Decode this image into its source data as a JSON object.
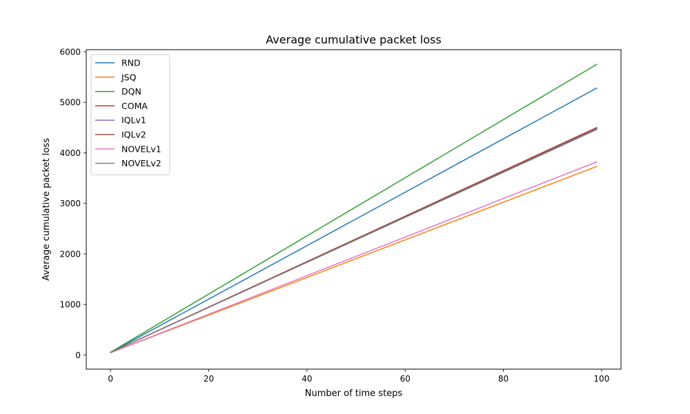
{
  "chart_data": {
    "type": "line",
    "title": "Average cumulative packet loss",
    "xlabel": "Number of time steps",
    "ylabel": "Average cumulative packet loss",
    "xlim": [
      -4.95,
      103.95
    ],
    "ylim": [
      -280,
      6040
    ],
    "xticks": [
      0,
      20,
      40,
      60,
      80,
      100
    ],
    "yticks": [
      0,
      1000,
      2000,
      3000,
      4000,
      5000,
      6000
    ],
    "grid": false,
    "legend_position": "upper left",
    "series": [
      {
        "name": "RND",
        "color": "#1f77b4",
        "x": [
          0,
          99
        ],
        "y": [
          50,
          5280
        ]
      },
      {
        "name": "JSQ",
        "color": "#ff7f0e",
        "x": [
          0,
          99
        ],
        "y": [
          45,
          3730
        ]
      },
      {
        "name": "DQN",
        "color": "#2ca02c",
        "x": [
          0,
          99
        ],
        "y": [
          55,
          5750
        ]
      },
      {
        "name": "COMA",
        "color": "#d62728",
        "x": [
          0,
          99
        ],
        "y": [
          50,
          4500
        ]
      },
      {
        "name": "IQLv1",
        "color": "#9467bd",
        "x": [
          0,
          99
        ],
        "y": [
          50,
          4480
        ]
      },
      {
        "name": "IQLv2",
        "color": "#8c564b",
        "x": [
          0,
          99
        ],
        "y": [
          50,
          4490
        ]
      },
      {
        "name": "NOVELv1",
        "color": "#e377c2",
        "x": [
          0,
          99
        ],
        "y": [
          45,
          3820
        ]
      },
      {
        "name": "NOVELv2",
        "color": "#7f7f7f",
        "x": [
          0,
          99
        ],
        "y": [
          50,
          4460
        ]
      }
    ]
  }
}
